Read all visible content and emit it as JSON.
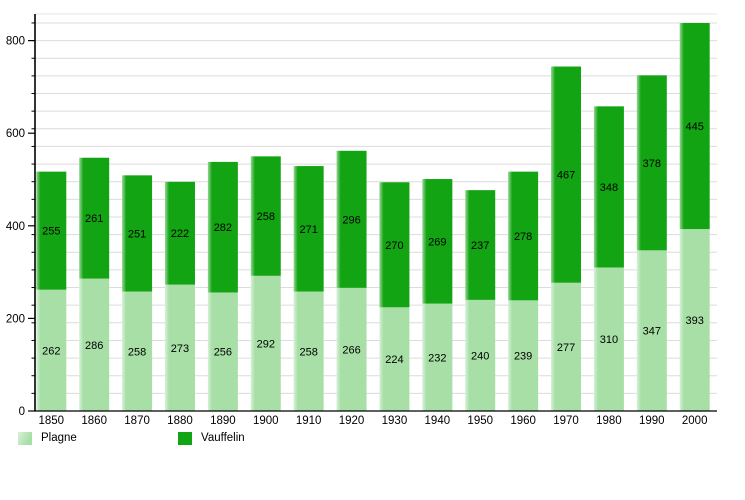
{
  "chart_data": {
    "type": "bar",
    "stacked": true,
    "categories": [
      "1850",
      "1860",
      "1870",
      "1880",
      "1890",
      "1900",
      "1910",
      "1920",
      "1930",
      "1940",
      "1950",
      "1960",
      "1970",
      "1980",
      "1990",
      "2000"
    ],
    "series": [
      {
        "name": "Plagne",
        "color": "#A7DFA7",
        "values": [
          262,
          286,
          258,
          273,
          256,
          292,
          258,
          266,
          224,
          232,
          240,
          239,
          277,
          310,
          347,
          393
        ]
      },
      {
        "name": "Vauffelin",
        "color": "#12A412",
        "values": [
          255,
          261,
          251,
          222,
          282,
          258,
          271,
          296,
          270,
          269,
          237,
          278,
          467,
          348,
          378,
          445
        ]
      }
    ],
    "totals": [
      517,
      547,
      509,
      495,
      538,
      550,
      529,
      562,
      494,
      501,
      477,
      517,
      744,
      658,
      725,
      838
    ],
    "y_ticks": [
      0,
      200,
      400,
      600,
      800
    ],
    "ylim": [
      0,
      858
    ],
    "value_labels": "shown inside each segment",
    "grid": "horizontal minor gridlines",
    "legend_position": "bottom-left",
    "colors": {
      "plagne": "#A7DFA7",
      "vauffelin": "#12A412",
      "gridline": "#DCDCDC",
      "axis": "#000000",
      "background": "#FFFFFF"
    }
  }
}
